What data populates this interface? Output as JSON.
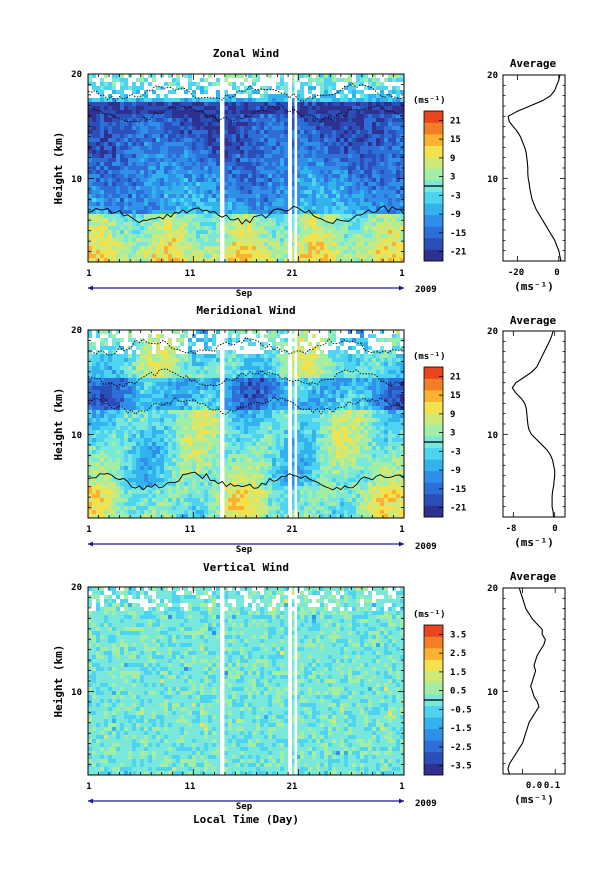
{
  "colors": {
    "scale": [
      "#2e3190",
      "#2b4fb8",
      "#2d6ed9",
      "#2f8fe9",
      "#32b3ee",
      "#4fd3f2",
      "#79e7d9",
      "#a3eea7",
      "#cde97a",
      "#f4e24d",
      "#fbb232",
      "#f47e26",
      "#e8461f"
    ],
    "axis": "#000000",
    "time_axis": "#1a1a8c"
  },
  "chart_data": [
    {
      "type": "heatmap",
      "id": "zonal",
      "title": "Zonal Wind",
      "ylabel": "Height (km)",
      "x_ticks": [
        "1",
        "11",
        "21",
        "1"
      ],
      "month_label": "Sep",
      "year_label": "2009",
      "y_ticks": [
        "20",
        "10"
      ],
      "ylim": [
        2,
        20
      ],
      "xlim_days": [
        1,
        31
      ],
      "colorbar": {
        "unit": "(ms⁻¹)",
        "ticks": [
          "21",
          "15",
          "9",
          "3",
          "-3",
          "-9",
          "-15",
          "-21"
        ],
        "range": [
          -24,
          24
        ]
      },
      "profile": {
        "title": "Average",
        "xlabel": "(ms⁻¹)",
        "x_ticks": [
          "-20",
          "0"
        ],
        "xlim": [
          -27,
          3
        ],
        "y_ticks": [
          "20",
          "10"
        ],
        "height_km": [
          2,
          2.5,
          3,
          3.5,
          4,
          4.5,
          5,
          5.5,
          6,
          6.5,
          7,
          7.5,
          8,
          8.5,
          9,
          9.5,
          10,
          10.5,
          11,
          11.5,
          12,
          12.5,
          13,
          13.5,
          14,
          14.5,
          15,
          15.5,
          16,
          16.5,
          17,
          17.5,
          18,
          18.5,
          19,
          19.5,
          20
        ],
        "values": [
          1,
          0.5,
          0,
          -1,
          -2,
          -3.5,
          -5,
          -6.5,
          -8,
          -9.5,
          -11,
          -12,
          -13,
          -13.5,
          -14,
          -14.3,
          -14.8,
          -15,
          -15,
          -15.2,
          -15.5,
          -15.8,
          -16.5,
          -17.5,
          -18.5,
          -20,
          -22,
          -24,
          -24.5,
          -20,
          -14,
          -8,
          -4,
          -2,
          -1,
          0,
          0.5
        ]
      }
    },
    {
      "type": "heatmap",
      "id": "meridional",
      "title": "Meridional Wind",
      "ylabel": "Height (km)",
      "x_ticks": [
        "1",
        "11",
        "21",
        "1"
      ],
      "month_label": "Sep",
      "year_label": "2009",
      "y_ticks": [
        "20",
        "10"
      ],
      "ylim": [
        2,
        20
      ],
      "xlim_days": [
        1,
        31
      ],
      "colorbar": {
        "unit": "(ms⁻¹)",
        "ticks": [
          "21",
          "15",
          "9",
          "3",
          "-3",
          "-9",
          "-15",
          "-21"
        ],
        "range": [
          -24,
          24
        ]
      },
      "profile": {
        "title": "Average",
        "xlabel": "(ms⁻¹)",
        "x_ticks": [
          "-8",
          "0"
        ],
        "xlim": [
          -10,
          2
        ],
        "y_ticks": [
          "20",
          "10"
        ],
        "height_km": [
          2,
          2.5,
          3,
          3.5,
          4,
          4.5,
          5,
          5.5,
          6,
          6.5,
          7,
          7.5,
          8,
          8.5,
          9,
          9.5,
          10,
          10.5,
          11,
          11.5,
          12,
          12.5,
          13,
          13.5,
          14,
          14.5,
          15,
          15.5,
          16,
          16.5,
          17,
          17.5,
          18,
          18.5,
          19,
          19.5,
          20
        ],
        "values": [
          -0.2,
          -0.3,
          -0.5,
          -0.5,
          -0.5,
          -0.4,
          -0.2,
          -0.1,
          0,
          0,
          -0.2,
          -0.4,
          -0.8,
          -1.5,
          -2.5,
          -3.5,
          -4.5,
          -5,
          -5.2,
          -5.3,
          -5.4,
          -5.5,
          -5.8,
          -6.5,
          -7.5,
          -8.2,
          -7.5,
          -6,
          -4.5,
          -3.5,
          -3,
          -2.5,
          -2,
          -1.5,
          -1,
          -0.6,
          -0.3
        ]
      }
    },
    {
      "type": "heatmap",
      "id": "vertical",
      "title": "Vertical Wind",
      "ylabel": "Height (km)",
      "xlabel": "Local Time (Day)",
      "x_ticks": [
        "1",
        "11",
        "21",
        "1"
      ],
      "month_label": "Sep",
      "year_label": "2009",
      "y_ticks": [
        "20",
        "10"
      ],
      "ylim": [
        2,
        20
      ],
      "xlim_days": [
        1,
        31
      ],
      "colorbar": {
        "unit": "(ms⁻¹)",
        "ticks": [
          "3.5",
          "2.5",
          "1.5",
          "0.5",
          "-0.5",
          "-1.5",
          "-2.5",
          "-3.5"
        ],
        "range": [
          -4,
          4
        ]
      },
      "profile": {
        "title": "Average",
        "xlabel": "(ms⁻¹)",
        "x_ticks": [
          "0.0",
          "0.1"
        ],
        "xlim": [
          -0.06,
          0.13
        ],
        "y_ticks": [
          "20",
          "10"
        ],
        "height_km": [
          2,
          2.5,
          3,
          3.5,
          4,
          4.5,
          5,
          5.5,
          6,
          6.5,
          7,
          7.5,
          8,
          8.5,
          9,
          9.5,
          10,
          10.5,
          11,
          11.5,
          12,
          12.5,
          13,
          13.5,
          14,
          14.5,
          15,
          15.5,
          16,
          16.5,
          17,
          17.5,
          18,
          18.5,
          19,
          19.5,
          20
        ],
        "values": [
          -0.04,
          -0.045,
          -0.04,
          -0.03,
          -0.02,
          -0.01,
          0,
          0.005,
          0.01,
          0.015,
          0.02,
          0.03,
          0.04,
          0.05,
          0.045,
          0.035,
          0.03,
          0.025,
          0.03,
          0.035,
          0.04,
          0.035,
          0.04,
          0.045,
          0.055,
          0.065,
          0.07,
          0.06,
          0.06,
          0.045,
          0.03,
          0.02,
          0.01,
          0.005,
          0,
          -0.005,
          -0.01
        ]
      }
    }
  ]
}
